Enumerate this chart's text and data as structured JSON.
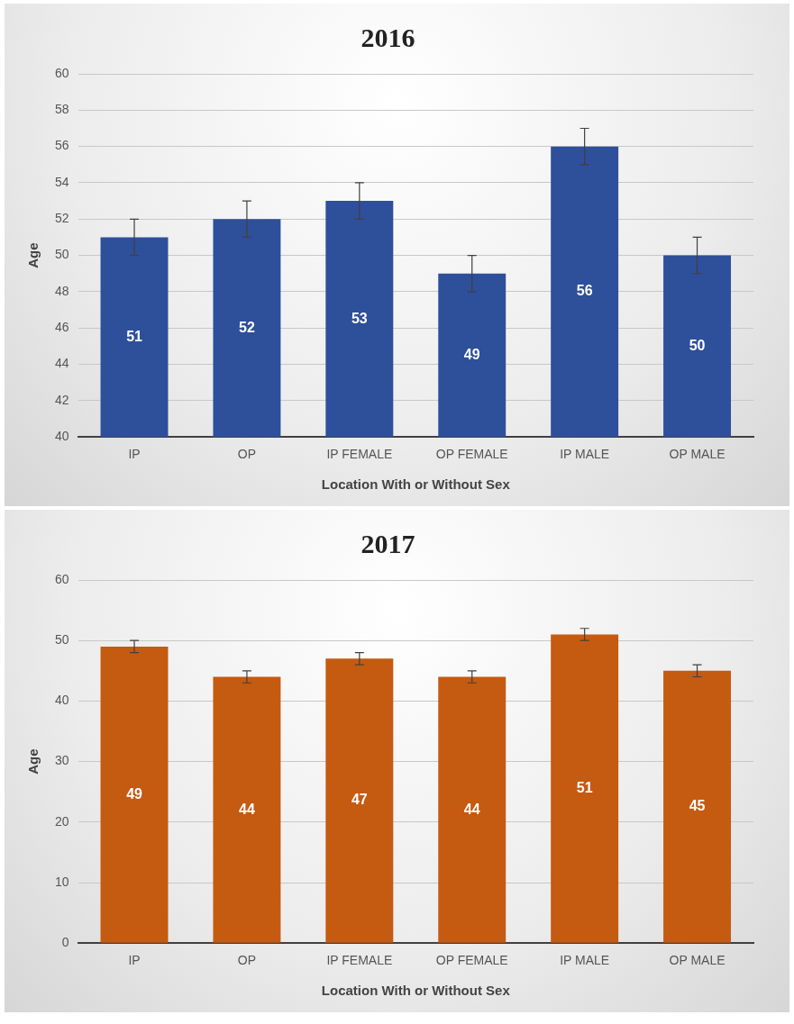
{
  "chart_data": [
    {
      "type": "bar",
      "title": "2016",
      "xlabel": "Location With or Without Sex",
      "ylabel": "Age",
      "categories": [
        "IP",
        "OP",
        "IP FEMALE",
        "OP FEMALE",
        "IP MALE",
        "OP MALE"
      ],
      "values": [
        51,
        52,
        53,
        49,
        56,
        50
      ],
      "errors": [
        1,
        1,
        1,
        1,
        1,
        1
      ],
      "color": "#2e4f9a",
      "ylim": [
        40,
        60
      ],
      "yticks": [
        40,
        42,
        44,
        46,
        48,
        50,
        52,
        54,
        56,
        58,
        60
      ],
      "grid": "y",
      "data_labels": true
    },
    {
      "type": "bar",
      "title": "2017",
      "xlabel": "Location With or Without Sex",
      "ylabel": "Age",
      "categories": [
        "IP",
        "OP",
        "IP FEMALE",
        "OP FEMALE",
        "IP MALE",
        "OP MALE"
      ],
      "values": [
        49,
        44,
        47,
        44,
        51,
        45
      ],
      "errors": [
        1,
        1,
        1,
        1,
        1,
        1
      ],
      "color": "#c55a11",
      "ylim": [
        0,
        60
      ],
      "yticks": [
        0,
        10,
        20,
        30,
        40,
        50,
        60
      ],
      "grid": "y",
      "data_labels": true
    }
  ]
}
